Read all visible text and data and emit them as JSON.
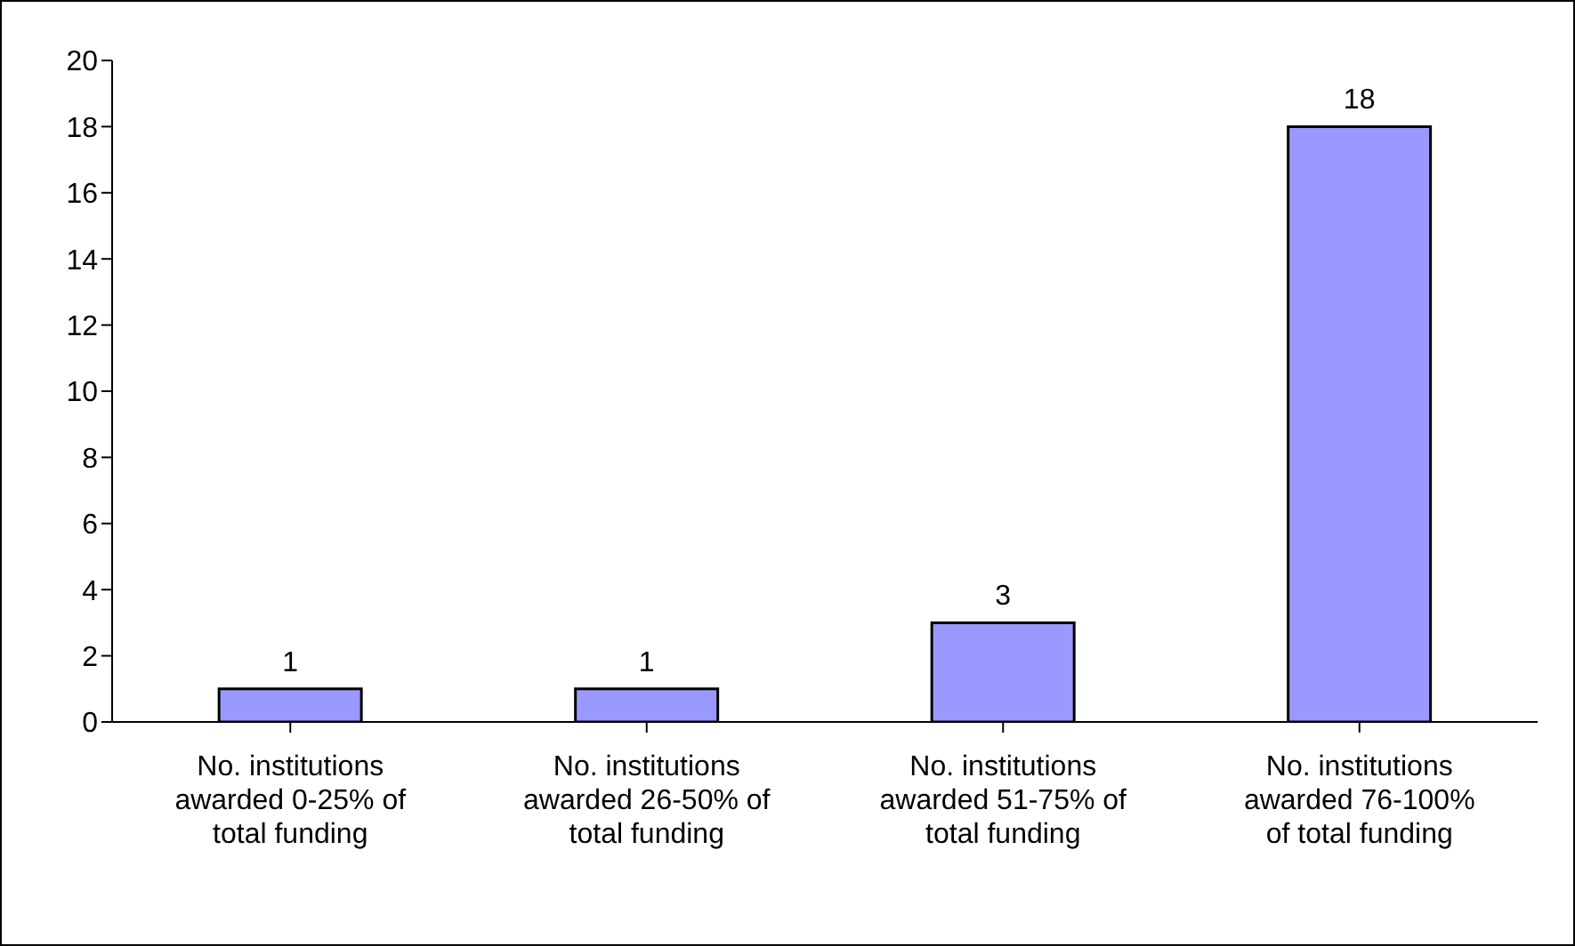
{
  "chart_data": {
    "type": "bar",
    "categories": [
      "No. institutions awarded 0-25% of total funding",
      "No. institutions awarded 26-50% of total funding",
      "No. institutions awarded 51-75% of total funding",
      "No. institutions awarded 76-100% of total funding"
    ],
    "values": [
      1,
      1,
      3,
      18
    ],
    "color": "#9999ff",
    "ylim": [
      0,
      20
    ],
    "yticks": [
      0,
      2,
      4,
      6,
      8,
      10,
      12,
      14,
      16,
      18,
      20
    ],
    "grid": false,
    "data_labels": true,
    "legend": false
  }
}
